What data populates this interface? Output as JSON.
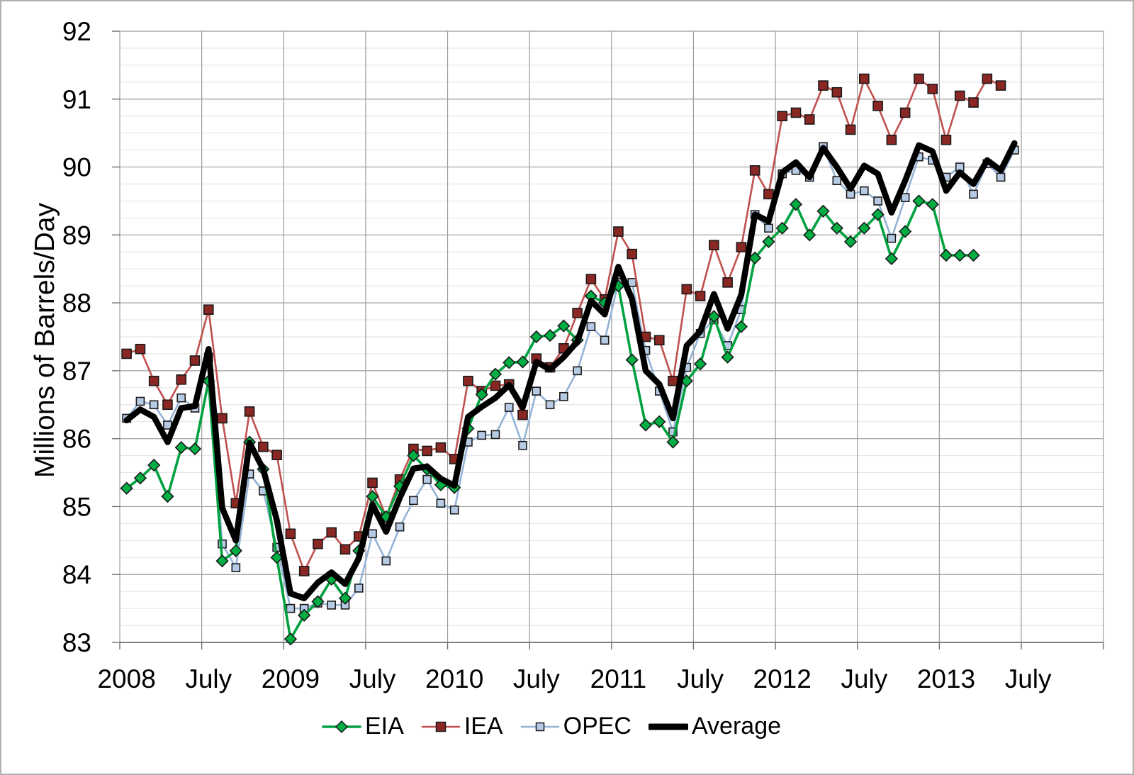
{
  "figure": {
    "background": "#ffffff",
    "border_color": "#b0b0b0"
  },
  "chart_data": {
    "type": "line",
    "title": "",
    "xlabel": "",
    "ylabel": "Millions of Barrels/Day",
    "ylim": [
      83,
      92
    ],
    "y_major_step": 1,
    "y_minor_step": 0.25,
    "grid": "major-and-minor-horizontal, half-year vertical",
    "legend_position": "bottom",
    "x_start": "2008-01",
    "x_interval": "monthly",
    "n_months": 66,
    "x_tick_labels": [
      "2008",
      "July",
      "2009",
      "July",
      "2010",
      "July",
      "2011",
      "July",
      "2012",
      "July",
      "2013",
      "July"
    ],
    "y_ticks": [
      83,
      84,
      85,
      86,
      87,
      88,
      89,
      90,
      91,
      92
    ],
    "axis_colors": {
      "major_grid": "#9c9c9c",
      "minor_grid": "#e2e2e2",
      "axis_line": "#6f6f6f"
    },
    "series": [
      {
        "name": "OPEC",
        "color": "#95B3D7",
        "line_width": 2.6,
        "marker": "square",
        "marker_size": 11,
        "marker_fill": "#B7CBE5",
        "values": [
          86.3,
          86.55,
          86.5,
          86.2,
          86.6,
          86.45,
          87.2,
          84.45,
          84.1,
          85.48,
          85.23,
          84.4,
          83.5,
          83.5,
          83.58,
          83.55,
          83.55,
          83.8,
          84.6,
          84.2,
          84.7,
          85.09,
          85.4,
          85.05,
          84.95,
          85.95,
          86.05,
          86.06,
          86.46,
          85.9,
          86.7,
          86.5,
          86.62,
          87.0,
          87.65,
          87.45,
          88.3,
          88.3,
          87.3,
          86.7,
          86.1,
          87.05,
          87.55,
          87.75,
          87.37,
          87.9,
          89.3,
          89.1,
          89.9,
          89.95,
          89.85,
          90.3,
          89.8,
          89.6,
          89.65,
          89.5,
          88.95,
          89.55,
          90.15,
          90.1,
          89.85,
          90.0,
          89.6,
          90.05,
          89.85,
          90.25
        ]
      },
      {
        "name": "IEA",
        "color": "#C0504D",
        "line_width": 2.6,
        "marker": "square",
        "marker_size": 13,
        "marker_fill": "#8B2723",
        "values": [
          87.25,
          87.32,
          86.85,
          86.5,
          86.87,
          87.15,
          87.9,
          86.3,
          85.05,
          86.4,
          85.88,
          85.76,
          84.6,
          84.05,
          84.45,
          84.62,
          84.37,
          84.56,
          85.35,
          84.85,
          85.4,
          85.85,
          85.82,
          85.87,
          85.7,
          86.85,
          86.7,
          86.78,
          86.8,
          86.35,
          87.18,
          87.05,
          87.33,
          87.85,
          88.35,
          88.05,
          89.05,
          88.72,
          87.5,
          87.45,
          86.85,
          88.2,
          88.1,
          88.85,
          88.3,
          88.82,
          89.95,
          89.6,
          90.75,
          90.8,
          90.7,
          91.2,
          91.1,
          90.55,
          91.3,
          90.9,
          90.4,
          90.8,
          91.3,
          91.15,
          90.4,
          91.05,
          90.95,
          91.3,
          91.2,
          null
        ]
      },
      {
        "name": "EIA",
        "color": "#00A13F",
        "line_width": 3.6,
        "marker": "diamond",
        "marker_size": 16,
        "marker_fill": "#00AE43",
        "values": [
          85.27,
          85.42,
          85.61,
          85.15,
          85.87,
          85.85,
          86.85,
          84.2,
          84.35,
          85.95,
          85.55,
          84.25,
          83.05,
          83.4,
          83.6,
          83.93,
          83.65,
          84.35,
          85.15,
          84.85,
          85.3,
          85.75,
          85.55,
          85.32,
          85.28,
          86.15,
          86.65,
          86.95,
          87.12,
          87.13,
          87.5,
          87.52,
          87.66,
          87.45,
          88.1,
          88.0,
          88.25,
          87.16,
          86.2,
          86.25,
          85.95,
          86.85,
          87.1,
          87.8,
          87.2,
          87.65,
          88.66,
          88.9,
          89.1,
          89.45,
          89.0,
          89.35,
          89.1,
          88.9,
          89.1,
          89.3,
          88.65,
          89.05,
          89.5,
          89.45,
          88.7,
          88.7,
          88.7,
          null,
          null,
          null
        ]
      },
      {
        "name": "Average",
        "color": "#000000",
        "line_width": 8.5,
        "marker": "none",
        "marker_size": 0,
        "marker_fill": "#000000",
        "values": [
          86.27,
          86.43,
          86.32,
          85.95,
          86.45,
          86.48,
          87.32,
          84.98,
          84.5,
          85.94,
          85.55,
          84.8,
          83.72,
          83.65,
          83.88,
          84.03,
          83.86,
          84.24,
          85.03,
          84.63,
          85.13,
          85.56,
          85.59,
          85.41,
          85.31,
          86.32,
          86.47,
          86.6,
          86.79,
          86.46,
          87.13,
          87.02,
          87.2,
          87.43,
          88.03,
          87.83,
          88.53,
          88.06,
          87.0,
          86.8,
          86.3,
          87.37,
          87.58,
          88.13,
          87.62,
          88.12,
          89.3,
          89.2,
          89.92,
          90.07,
          89.85,
          90.28,
          90.0,
          89.68,
          90.02,
          89.9,
          89.33,
          89.8,
          90.32,
          90.23,
          89.65,
          89.92,
          89.75,
          90.1,
          89.95,
          90.35
        ]
      }
    ],
    "legend_order": [
      "EIA",
      "IEA",
      "OPEC",
      "Average"
    ]
  }
}
